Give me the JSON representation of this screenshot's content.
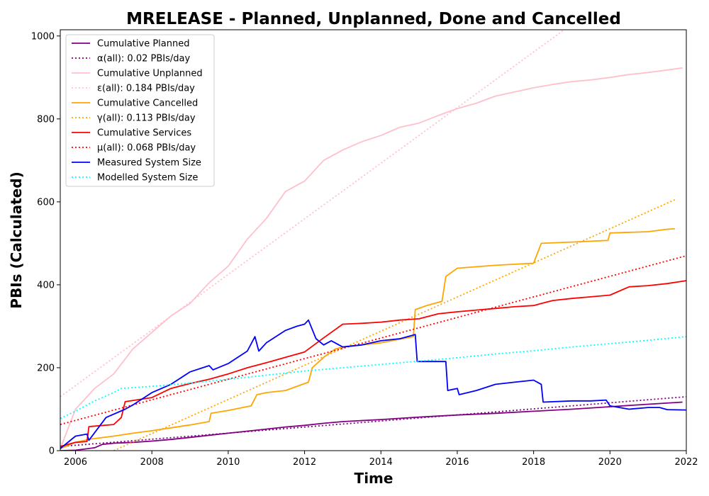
{
  "chart_data": {
    "type": "line",
    "title": "MRELEASE - Planned, Unplanned, Done  and Cancelled",
    "xlabel": "Time",
    "ylabel": "PBIs (Calculated)",
    "xlim": [
      2005.6,
      2022.0
    ],
    "ylim": [
      0,
      1015
    ],
    "xticks": [
      2006,
      2008,
      2010,
      2012,
      2014,
      2016,
      2018,
      2020,
      2022
    ],
    "yticks": [
      0,
      200,
      400,
      600,
      800,
      1000
    ],
    "grid": false,
    "legend_position": "top-left",
    "series": [
      {
        "name": "Cumulative Planned",
        "color": "#800080",
        "style": "solid",
        "x": [
          2005.6,
          2006.0,
          2006.5,
          2006.7,
          2007.0,
          2007.5,
          2008.0,
          2008.5,
          2009.0,
          2009.5,
          2010.0,
          2010.5,
          2011.0,
          2011.5,
          2012.0,
          2012.5,
          2013.0,
          2014.0,
          2015.0,
          2016.0,
          2017.0,
          2018.0,
          2019.0,
          2020.0,
          2021.0,
          2021.9
        ],
        "y": [
          0,
          1,
          7,
          15,
          18,
          20,
          23,
          27,
          32,
          37,
          42,
          47,
          52,
          57,
          61,
          66,
          70,
          75,
          81,
          86,
          90,
          95,
          100,
          106,
          112,
          117
        ]
      },
      {
        "name": "α(all): 0.02 PBIs/day",
        "color": "#800080",
        "style": "dotted",
        "x": [
          2005.6,
          2022.0
        ],
        "y": [
          10,
          130
        ]
      },
      {
        "name": "Cumulative Unplanned",
        "color": "#ffc0cb",
        "style": "solid",
        "x": [
          2005.6,
          2006.0,
          2006.5,
          2007.0,
          2007.5,
          2008.0,
          2008.5,
          2009.0,
          2009.5,
          2010.0,
          2010.5,
          2011.0,
          2011.5,
          2012.0,
          2012.5,
          2013.0,
          2013.5,
          2014.0,
          2014.5,
          2015.0,
          2015.5,
          2016.0,
          2016.5,
          2017.0,
          2017.5,
          2018.0,
          2018.5,
          2019.0,
          2019.5,
          2020.0,
          2020.5,
          2021.0,
          2021.5,
          2021.9
        ],
        "y": [
          5,
          100,
          150,
          185,
          245,
          285,
          325,
          355,
          405,
          445,
          510,
          560,
          625,
          650,
          700,
          725,
          745,
          760,
          780,
          790,
          808,
          825,
          838,
          855,
          865,
          875,
          883,
          890,
          894,
          900,
          907,
          912,
          918,
          923
        ]
      },
      {
        "name": "ε(all): 0.184 PBIs/day",
        "color": "#ffc0cb",
        "style": "dotted",
        "x": [
          2005.6,
          2018.8
        ],
        "y": [
          130,
          1015
        ]
      },
      {
        "name": "Cumulative Cancelled",
        "color": "#ffa500",
        "style": "solid",
        "x": [
          2005.6,
          2006.0,
          2006.4,
          2007.0,
          2007.5,
          2008.0,
          2008.5,
          2009.0,
          2009.5,
          2009.55,
          2010.0,
          2010.6,
          2010.75,
          2011.0,
          2011.5,
          2012.1,
          2012.2,
          2012.5,
          2012.8,
          2013.0,
          2014.0,
          2014.85,
          2014.9,
          2015.2,
          2015.6,
          2015.7,
          2016.0,
          2017.0,
          2018.0,
          2018.2,
          2019.0,
          2019.95,
          2020.0,
          2021.0,
          2021.5,
          2021.7
        ],
        "y": [
          5,
          20,
          28,
          35,
          42,
          48,
          55,
          62,
          70,
          90,
          97,
          108,
          135,
          140,
          145,
          165,
          200,
          225,
          245,
          250,
          260,
          275,
          340,
          350,
          360,
          420,
          440,
          447,
          452,
          500,
          503,
          507,
          525,
          528,
          534,
          535
        ]
      },
      {
        "name": "γ(all): 0.113 PBIs/day",
        "color": "#ffa500",
        "style": "dotted",
        "x": [
          2007.0,
          2021.7
        ],
        "y": [
          0,
          605
        ]
      },
      {
        "name": "Cumulative Services",
        "color": "#ff0000",
        "style": "solid",
        "x": [
          2005.6,
          2006.0,
          2006.3,
          2006.35,
          2007.0,
          2007.2,
          2007.3,
          2008.0,
          2008.5,
          2009.0,
          2009.5,
          2010.0,
          2010.5,
          2011.0,
          2011.5,
          2012.0,
          2012.5,
          2013.0,
          2013.5,
          2014.0,
          2014.5,
          2015.0,
          2015.5,
          2016.0,
          2016.5,
          2017.0,
          2017.5,
          2018.0,
          2018.5,
          2019.0,
          2019.5,
          2020.0,
          2020.5,
          2021.0,
          2021.5,
          2022.0
        ],
        "y": [
          10,
          20,
          22,
          58,
          63,
          80,
          118,
          128,
          150,
          162,
          172,
          185,
          200,
          212,
          225,
          238,
          272,
          305,
          307,
          310,
          315,
          318,
          330,
          335,
          339,
          343,
          347,
          350,
          362,
          367,
          371,
          375,
          395,
          398,
          403,
          410
        ]
      },
      {
        "name": "μ(all): 0.068 PBIs/day",
        "color": "#ff0000",
        "style": "dotted",
        "x": [
          2005.6,
          2022.0
        ],
        "y": [
          63,
          470
        ]
      },
      {
        "name": "Measured System Size",
        "color": "#0000ff",
        "style": "solid",
        "x": [
          2005.6,
          2006.0,
          2006.3,
          2006.35,
          2006.8,
          2007.3,
          2007.5,
          2008.0,
          2008.5,
          2009.0,
          2009.5,
          2009.6,
          2010.0,
          2010.5,
          2010.7,
          2010.8,
          2011.0,
          2011.5,
          2011.8,
          2012.0,
          2012.1,
          2012.3,
          2012.5,
          2012.7,
          2013.0,
          2013.5,
          2014.0,
          2014.5,
          2014.9,
          2014.95,
          2015.3,
          2015.7,
          2015.75,
          2016.0,
          2016.05,
          2016.5,
          2017.0,
          2017.5,
          2018.0,
          2018.2,
          2018.25,
          2019.0,
          2019.5,
          2019.9,
          2020.0,
          2020.5,
          2021.0,
          2021.3,
          2021.5,
          2022.0
        ],
        "y": [
          5,
          35,
          40,
          25,
          80,
          100,
          110,
          140,
          160,
          190,
          205,
          195,
          210,
          240,
          275,
          240,
          260,
          290,
          300,
          305,
          315,
          270,
          255,
          265,
          250,
          255,
          265,
          270,
          280,
          215,
          215,
          215,
          145,
          150,
          135,
          145,
          160,
          165,
          170,
          160,
          117,
          120,
          120,
          122,
          108,
          100,
          104,
          104,
          99,
          98
        ]
      },
      {
        "name": "Modelled System Size",
        "color": "#00ffff",
        "style": "dotted",
        "x": [
          2005.6,
          2006.0,
          2006.5,
          2007.0,
          2007.2,
          2008.0,
          2009.0,
          2010.0,
          2011.0,
          2012.0,
          2013.0,
          2014.0,
          2015.0,
          2016.0,
          2017.0,
          2018.0,
          2019.0,
          2020.0,
          2021.0,
          2022.0
        ],
        "y": [
          78,
          95,
          120,
          140,
          150,
          155,
          163,
          172,
          182,
          192,
          200,
          208,
          216,
          224,
          233,
          241,
          250,
          258,
          266,
          275
        ]
      }
    ]
  }
}
